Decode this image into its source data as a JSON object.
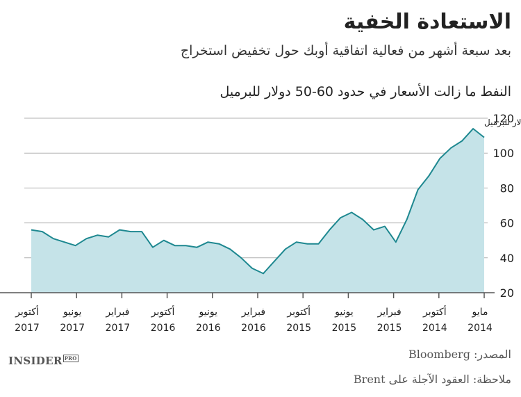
{
  "title": "الاستعادة الخفية",
  "subtitle": "بعد سبعة أشهر من فعالية اتفاقية أوبك حول تخفيض استخراج",
  "chart_data": {
    "type": "area",
    "title": "النفط ما زالت الأسعار في حدود 60-50 دولار للبرميل",
    "unit_label": "دولار للبرميل",
    "ylim": [
      20,
      120
    ],
    "yticks": [
      20,
      40,
      60,
      80,
      100,
      120
    ],
    "x_direction": "right-to-left",
    "xticks": [
      {
        "month": "مايو",
        "year": "2014"
      },
      {
        "month": "أكتوبر",
        "year": "2014"
      },
      {
        "month": "فبراير",
        "year": "2015"
      },
      {
        "month": "يونيو",
        "year": "2015"
      },
      {
        "month": "أكتوبر",
        "year": "2015"
      },
      {
        "month": "فبراير",
        "year": "2016"
      },
      {
        "month": "يونيو",
        "year": "2016"
      },
      {
        "month": "أكتوبر",
        "year": "2016"
      },
      {
        "month": "فبراير",
        "year": "2017"
      },
      {
        "month": "يونيو",
        "year": "2017"
      },
      {
        "month": "أكتوبر",
        "year": "2017"
      }
    ],
    "series": [
      {
        "x": [
          "2014-05",
          "2014-06",
          "2014-07",
          "2014-08",
          "2014-09",
          "2014-10",
          "2014-11",
          "2014-12",
          "2015-01",
          "2015-02",
          "2015-03",
          "2015-04",
          "2015-05",
          "2015-06",
          "2015-07",
          "2015-08",
          "2015-09",
          "2015-10",
          "2015-11",
          "2015-12",
          "2016-01",
          "2016-02",
          "2016-03",
          "2016-04",
          "2016-05",
          "2016-06",
          "2016-07",
          "2016-08",
          "2016-09",
          "2016-10",
          "2016-11",
          "2016-12",
          "2017-01",
          "2017-02",
          "2017-03",
          "2017-04",
          "2017-05",
          "2017-06",
          "2017-07",
          "2017-08",
          "2017-09",
          "2017-10"
        ],
        "values": [
          109,
          114,
          107,
          103,
          97,
          87,
          79,
          62,
          49,
          58,
          56,
          62,
          66,
          63,
          56,
          48,
          48,
          49,
          45,
          38,
          31,
          34,
          40,
          45,
          48,
          49,
          46,
          47,
          47,
          50,
          46,
          55,
          55,
          56,
          52,
          53,
          51,
          47,
          49,
          51,
          55,
          56
        ]
      }
    ],
    "colors": {
      "fill": "#c5e3e8",
      "line": "#1e8890",
      "grid": "#b0b0b0",
      "axis": "#555555"
    }
  },
  "source": "المصدر: Bloomberg",
  "note": "ملاحظة: العقود الآجلة على Brent",
  "logo": {
    "main": "INSIDER",
    "sup": "PRO"
  }
}
